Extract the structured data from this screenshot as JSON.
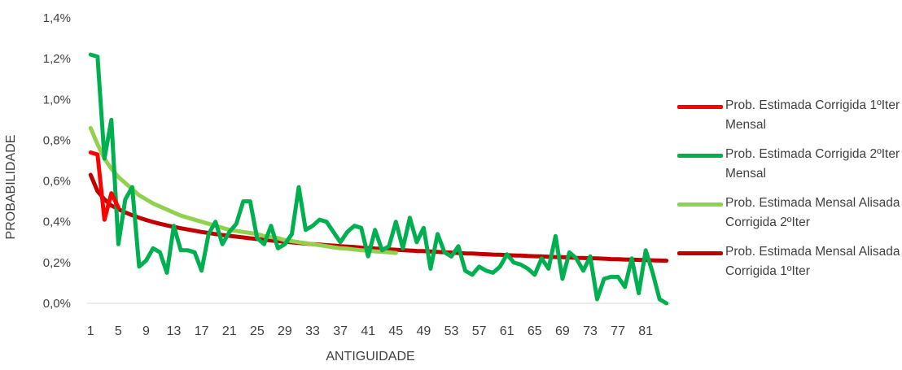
{
  "chart_data": {
    "type": "line",
    "xlabel": "ANTIGUIDADE",
    "ylabel": "PROBABILIDADE",
    "ylim": [
      0,
      0.014
    ],
    "yticks": [
      "0,0%",
      "0,2%",
      "0,4%",
      "0,6%",
      "0,8%",
      "1,0%",
      "1,2%",
      "1,4%"
    ],
    "xticks": [
      "1",
      "5",
      "9",
      "13",
      "17",
      "21",
      "25",
      "29",
      "33",
      "37",
      "41",
      "45",
      "49",
      "53",
      "57",
      "61",
      "65",
      "69",
      "73",
      "77",
      "81"
    ],
    "x": [
      1,
      2,
      3,
      4,
      5,
      6,
      7,
      8,
      9,
      10,
      11,
      12,
      13,
      14,
      15,
      16,
      17,
      18,
      19,
      20,
      21,
      22,
      23,
      24,
      25,
      26,
      27,
      28,
      29,
      30,
      31,
      32,
      33,
      34,
      35,
      36,
      37,
      38,
      39,
      40,
      41,
      42,
      43,
      44,
      45,
      46,
      47,
      48,
      49,
      50,
      51,
      52,
      53,
      54,
      55,
      56,
      57,
      58,
      59,
      60,
      61,
      62,
      63,
      64,
      65,
      66,
      67,
      68,
      69,
      70,
      71,
      72,
      73,
      74,
      75,
      76,
      77,
      78,
      79,
      80,
      81,
      82,
      83,
      84
    ],
    "grid": false,
    "legend_position": "right",
    "series": [
      {
        "name": "Prob. Estimada Corrigida 1ºIter Mensal",
        "color": "#ff0000",
        "x": [
          1,
          2,
          3,
          4,
          5
        ],
        "values": [
          0.0074,
          0.0073,
          0.0041,
          0.0054,
          0.0047
        ]
      },
      {
        "name": "Prob. Estimada Corrigida 2ºIter Mensal",
        "color": "#00b050",
        "values": [
          0.0122,
          0.0121,
          0.0071,
          0.009,
          0.0029,
          0.0051,
          0.0057,
          0.0018,
          0.0021,
          0.0027,
          0.0025,
          0.0015,
          0.0038,
          0.0026,
          0.0026,
          0.0025,
          0.0016,
          0.0034,
          0.004,
          0.0029,
          0.0035,
          0.0039,
          0.005,
          0.005,
          0.0032,
          0.0029,
          0.0038,
          0.0027,
          0.0029,
          0.0034,
          0.0057,
          0.0036,
          0.0038,
          0.0041,
          0.004,
          0.0035,
          0.003,
          0.0035,
          0.0038,
          0.0037,
          0.0023,
          0.0036,
          0.0026,
          0.0028,
          0.004,
          0.0027,
          0.0042,
          0.003,
          0.0037,
          0.0017,
          0.0034,
          0.0025,
          0.0023,
          0.0028,
          0.0016,
          0.0014,
          0.0018,
          0.0016,
          0.0015,
          0.0018,
          0.0024,
          0.002,
          0.0019,
          0.0017,
          0.0014,
          0.0022,
          0.0017,
          0.0033,
          0.0012,
          0.0025,
          0.0022,
          0.0016,
          0.0023,
          0.0002,
          0.0012,
          0.0013,
          0.0013,
          0.0008,
          0.0022,
          0.0005,
          0.0026,
          0.0015,
          0.0002,
          0.0
        ]
      },
      {
        "name": "Prob. Estimada Mensal Alisada Corrigida 2ºIter",
        "color": "#92d050",
        "x": [
          1,
          2,
          3,
          4,
          5,
          6,
          7,
          8,
          9,
          10,
          11,
          12,
          13,
          14,
          15,
          16,
          17,
          18,
          19,
          20,
          21,
          22,
          23,
          24,
          25,
          26,
          27,
          28,
          29,
          30,
          31,
          32,
          33,
          34,
          35,
          36,
          37,
          38,
          39,
          40,
          41,
          42,
          43,
          44,
          45
        ],
        "values": [
          0.0086,
          0.0078,
          0.0071,
          0.0066,
          0.0062,
          0.0059,
          0.0056,
          0.0053,
          0.0051,
          0.0049,
          0.00475,
          0.0046,
          0.00445,
          0.0043,
          0.0042,
          0.0041,
          0.004,
          0.0039,
          0.0038,
          0.0037,
          0.0036,
          0.00355,
          0.0035,
          0.00345,
          0.0034,
          0.0033,
          0.00325,
          0.0032,
          0.0031,
          0.00305,
          0.003,
          0.00295,
          0.0029,
          0.00285,
          0.0028,
          0.00275,
          0.0027,
          0.00268,
          0.00264,
          0.0026,
          0.00258,
          0.00255,
          0.00252,
          0.0025,
          0.00247
        ]
      },
      {
        "name": "Prob. Estimada Mensal Alisada Corrigida 1ºIter",
        "color": "#c00000",
        "values": [
          0.0063,
          0.0055,
          0.0051,
          0.0048,
          0.00462,
          0.00446,
          0.00432,
          0.0042,
          0.00409,
          0.00399,
          0.0039,
          0.00382,
          0.00375,
          0.00368,
          0.00362,
          0.00356,
          0.0035,
          0.00345,
          0.0034,
          0.00335,
          0.00331,
          0.00327,
          0.00323,
          0.00319,
          0.00315,
          0.00312,
          0.00308,
          0.00305,
          0.00302,
          0.00299,
          0.00296,
          0.00293,
          0.0029,
          0.00288,
          0.00285,
          0.00283,
          0.0028,
          0.00278,
          0.00276,
          0.00273,
          0.00271,
          0.00269,
          0.00267,
          0.00265,
          0.00263,
          0.00261,
          0.00259,
          0.00257,
          0.00256,
          0.00254,
          0.00252,
          0.0025,
          0.00249,
          0.00247,
          0.00245,
          0.00244,
          0.00242,
          0.00241,
          0.00239,
          0.00238,
          0.00236,
          0.00235,
          0.00234,
          0.00232,
          0.00231,
          0.0023,
          0.00228,
          0.00227,
          0.00226,
          0.00225,
          0.00223,
          0.00222,
          0.00221,
          0.0022,
          0.00219,
          0.00217,
          0.00216,
          0.00215,
          0.00214,
          0.00213,
          0.00212,
          0.00211,
          0.0021,
          0.00209
        ]
      }
    ]
  }
}
